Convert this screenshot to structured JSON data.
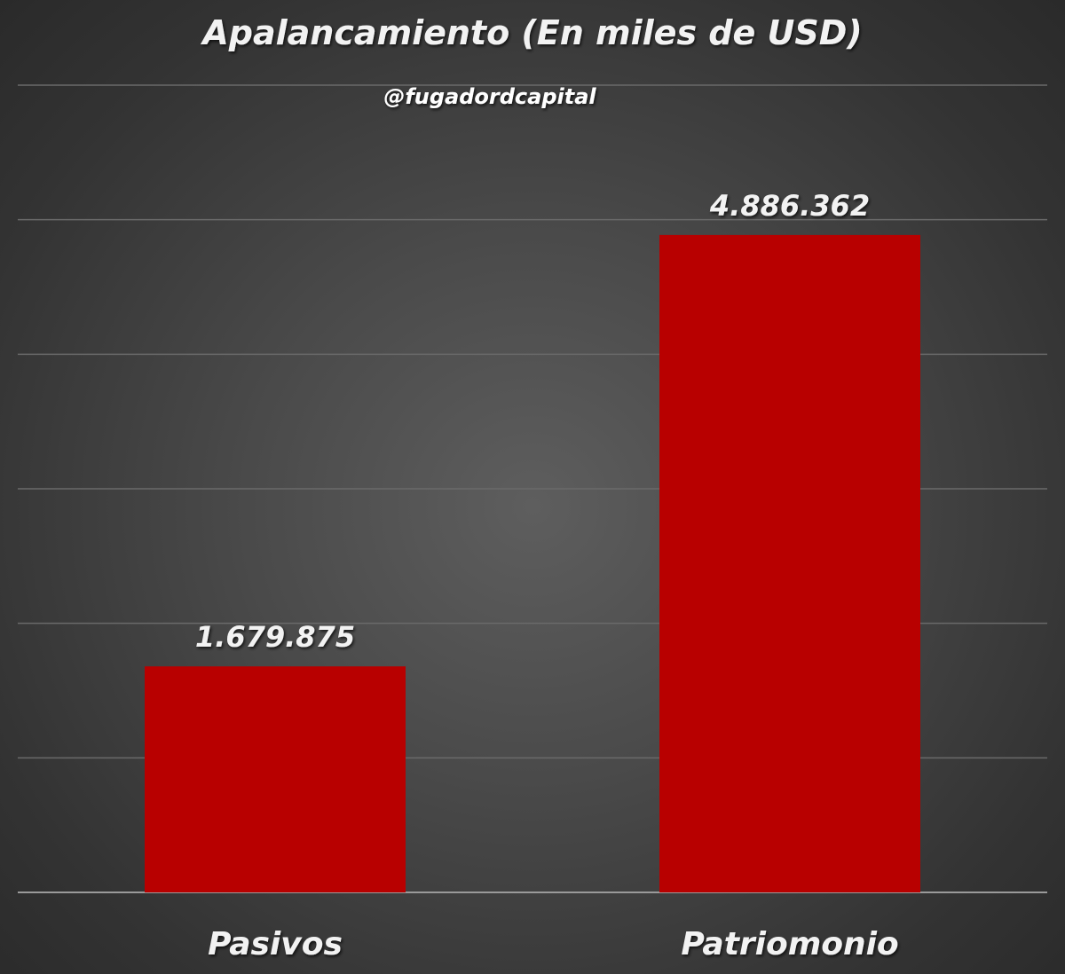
{
  "chart_data": {
    "type": "bar",
    "title": "Apalancamiento (En miles de USD)",
    "watermark": "@fugadordcapital",
    "categories": [
      "Pasivos",
      "Patriomonio"
    ],
    "values": [
      1679875,
      4886362
    ],
    "value_labels": [
      "1.679.875",
      "4.886.362"
    ],
    "ylim": [
      0,
      6000000
    ],
    "gridlines": true,
    "legend": "none",
    "bar_color": "#b80000",
    "colors": {
      "text": "#f2f2f2",
      "gridline": "#6a6a6a",
      "axis": "#9a9a9a"
    }
  }
}
